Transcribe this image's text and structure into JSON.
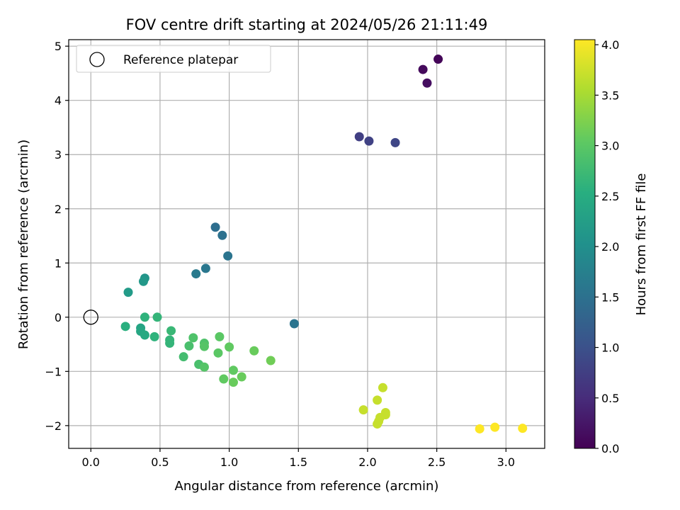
{
  "chart_data": {
    "type": "scatter",
    "title": "FOV centre drift starting at 2024/05/26 21:11:49",
    "xlabel": "Angular distance from reference (arcmin)",
    "ylabel": "Rotation from reference (arcmin)",
    "xlim": [
      -0.16,
      3.28
    ],
    "ylim": [
      -2.42,
      5.12
    ],
    "xticks": [
      0.0,
      0.5,
      1.0,
      1.5,
      2.0,
      2.5,
      3.0
    ],
    "xtick_labels": [
      "0.0",
      "0.5",
      "1.0",
      "1.5",
      "2.0",
      "2.5",
      "3.0"
    ],
    "yticks": [
      -2,
      -1,
      0,
      1,
      2,
      3,
      4,
      5
    ],
    "ytick_labels": [
      "−2",
      "−1",
      "0",
      "1",
      "2",
      "3",
      "4",
      "5"
    ],
    "grid": true,
    "colormap": "viridis",
    "colorbar": {
      "label": "Hours from first FF file",
      "range": [
        0.0,
        4.05
      ],
      "ticks": [
        0.0,
        0.5,
        1.0,
        1.5,
        2.0,
        2.5,
        3.0,
        3.5,
        4.0
      ],
      "tick_labels": [
        "0.0",
        "0.5",
        "1.0",
        "1.5",
        "2.0",
        "2.5",
        "3.0",
        "3.5",
        "4.0"
      ]
    },
    "legend": {
      "placement": "top-left",
      "entries": [
        {
          "label": "Reference platepar",
          "marker": "open-circle"
        }
      ]
    },
    "reference_point": {
      "x": 0.0,
      "y": 0.0
    },
    "points": [
      {
        "x": 2.51,
        "y": 4.76,
        "hours": 0.05
      },
      {
        "x": 2.4,
        "y": 4.57,
        "hours": 0.1
      },
      {
        "x": 2.43,
        "y": 4.32,
        "hours": 0.15
      },
      {
        "x": 1.94,
        "y": 3.33,
        "hours": 0.75
      },
      {
        "x": 2.01,
        "y": 3.25,
        "hours": 0.8
      },
      {
        "x": 2.2,
        "y": 3.22,
        "hours": 0.85
      },
      {
        "x": 0.9,
        "y": 1.66,
        "hours": 1.45
      },
      {
        "x": 0.95,
        "y": 1.51,
        "hours": 1.5
      },
      {
        "x": 0.99,
        "y": 1.13,
        "hours": 1.55
      },
      {
        "x": 0.83,
        "y": 0.9,
        "hours": 1.6
      },
      {
        "x": 0.76,
        "y": 0.8,
        "hours": 1.65
      },
      {
        "x": 1.47,
        "y": -0.12,
        "hours": 1.55
      },
      {
        "x": 0.39,
        "y": 0.72,
        "hours": 2.1
      },
      {
        "x": 0.38,
        "y": 0.66,
        "hours": 2.15
      },
      {
        "x": 0.27,
        "y": 0.46,
        "hours": 2.2
      },
      {
        "x": 0.25,
        "y": -0.17,
        "hours": 2.55
      },
      {
        "x": 0.36,
        "y": -0.2,
        "hours": 2.35
      },
      {
        "x": 0.36,
        "y": -0.26,
        "hours": 2.4
      },
      {
        "x": 0.39,
        "y": -0.33,
        "hours": 2.45
      },
      {
        "x": 0.39,
        "y": 0.0,
        "hours": 2.6
      },
      {
        "x": 0.48,
        "y": 0.0,
        "hours": 2.65
      },
      {
        "x": 0.46,
        "y": -0.36,
        "hours": 2.6
      },
      {
        "x": 0.58,
        "y": -0.25,
        "hours": 2.7
      },
      {
        "x": 0.57,
        "y": -0.42,
        "hours": 2.65
      },
      {
        "x": 0.57,
        "y": -0.48,
        "hours": 2.65
      },
      {
        "x": 0.67,
        "y": -0.73,
        "hours": 2.8
      },
      {
        "x": 0.71,
        "y": -0.53,
        "hours": 2.85
      },
      {
        "x": 0.74,
        "y": -0.38,
        "hours": 2.9
      },
      {
        "x": 0.78,
        "y": -0.87,
        "hours": 2.85
      },
      {
        "x": 0.82,
        "y": -0.48,
        "hours": 2.9
      },
      {
        "x": 0.82,
        "y": -0.54,
        "hours": 2.95
      },
      {
        "x": 0.82,
        "y": -0.92,
        "hours": 2.95
      },
      {
        "x": 0.92,
        "y": -0.66,
        "hours": 3.0
      },
      {
        "x": 0.93,
        "y": -0.36,
        "hours": 3.0
      },
      {
        "x": 0.96,
        "y": -1.14,
        "hours": 3.05
      },
      {
        "x": 1.0,
        "y": -0.55,
        "hours": 3.05
      },
      {
        "x": 1.03,
        "y": -0.98,
        "hours": 3.05
      },
      {
        "x": 1.03,
        "y": -1.2,
        "hours": 3.1
      },
      {
        "x": 1.09,
        "y": -1.1,
        "hours": 3.1
      },
      {
        "x": 1.18,
        "y": -0.62,
        "hours": 3.1
      },
      {
        "x": 1.3,
        "y": -0.8,
        "hours": 3.15
      },
      {
        "x": 1.97,
        "y": -1.71,
        "hours": 3.7
      },
      {
        "x": 2.07,
        "y": -1.53,
        "hours": 3.7
      },
      {
        "x": 2.11,
        "y": -1.3,
        "hours": 3.7
      },
      {
        "x": 2.13,
        "y": -1.76,
        "hours": 3.7
      },
      {
        "x": 2.13,
        "y": -1.8,
        "hours": 3.7
      },
      {
        "x": 2.09,
        "y": -1.85,
        "hours": 3.7
      },
      {
        "x": 2.08,
        "y": -1.92,
        "hours": 3.7
      },
      {
        "x": 2.07,
        "y": -1.97,
        "hours": 3.7
      },
      {
        "x": 2.81,
        "y": -2.06,
        "hours": 4.05
      },
      {
        "x": 2.92,
        "y": -2.03,
        "hours": 4.05
      },
      {
        "x": 3.12,
        "y": -2.05,
        "hours": 4.05
      }
    ]
  }
}
